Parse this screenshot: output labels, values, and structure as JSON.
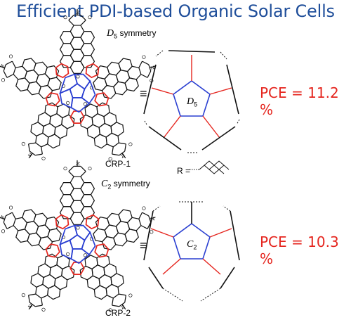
{
  "title": "Efficient PDI-based Organic Solar Cells",
  "top": {
    "symmetry_letter": "D",
    "symmetry_sub": "5",
    "symmetry_word": "symmetry",
    "compound": "CRP-1",
    "schematic_letter": "D",
    "schematic_sub": "5",
    "pce": "PCE = 11.2 %"
  },
  "bottom": {
    "symmetry_letter": "C",
    "symmetry_sub": "2",
    "symmetry_word": "symmetry",
    "compound": "CRP-2",
    "schematic_letter": "C",
    "schematic_sub": "2",
    "pce": "PCE = 10.3 %"
  },
  "equiv_symbol": "≡",
  "r_label": "R =",
  "colors": {
    "title": "#1f4e9a",
    "pce": "#e5261f",
    "core": "#2a3fd1",
    "arm_link": "#e5261f"
  }
}
